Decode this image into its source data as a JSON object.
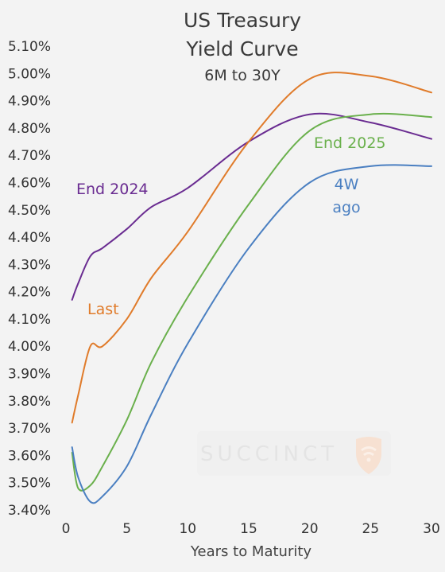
{
  "chart_data": {
    "type": "line",
    "title": "US Treasury",
    "title_line2": "Yield Curve",
    "subtitle": "6M to 30Y",
    "xlabel": "Years to Maturity",
    "ylabel": "",
    "xlim": [
      0,
      30
    ],
    "ylim": [
      3.4,
      5.1
    ],
    "x_ticks": [
      "0",
      "5",
      "10",
      "15",
      "20",
      "25",
      "30"
    ],
    "y_ticks": [
      "3.40%",
      "3.50%",
      "3.60%",
      "3.70%",
      "3.80%",
      "3.90%",
      "4.00%",
      "4.10%",
      "4.20%",
      "4.30%",
      "4.40%",
      "4.50%",
      "4.60%",
      "4.70%",
      "4.80%",
      "4.90%",
      "5.00%",
      "5.10%"
    ],
    "grid": false,
    "legend": "inline labels",
    "series": [
      {
        "name": "End 2024",
        "label_lines": [
          "End 2024"
        ],
        "color": "#6a2c91",
        "x": [
          0.5,
          1,
          2,
          3,
          5,
          7,
          10,
          15,
          20,
          25,
          30
        ],
        "y": [
          4.17,
          4.23,
          4.33,
          4.36,
          4.43,
          4.51,
          4.58,
          4.75,
          4.85,
          4.82,
          4.76
        ]
      },
      {
        "name": "Last",
        "label_lines": [
          "Last"
        ],
        "color": "#e07b2a",
        "x": [
          0.5,
          1,
          2,
          3,
          5,
          7,
          10,
          15,
          20,
          25,
          30
        ],
        "y": [
          3.72,
          3.82,
          4.0,
          4.0,
          4.1,
          4.25,
          4.42,
          4.75,
          4.98,
          4.99,
          4.93
        ]
      },
      {
        "name": "End 2025",
        "label_lines": [
          "End 2025"
        ],
        "color": "#6ab04c",
        "x": [
          0.5,
          1,
          2,
          3,
          5,
          7,
          10,
          15,
          20,
          25,
          30
        ],
        "y": [
          3.61,
          3.48,
          3.49,
          3.56,
          3.73,
          3.94,
          4.18,
          4.52,
          4.79,
          4.85,
          4.84
        ]
      },
      {
        "name": "4W ago",
        "label_lines": [
          "4W",
          "ago"
        ],
        "color": "#4a7fc1",
        "x": [
          0.5,
          1,
          2,
          3,
          5,
          7,
          10,
          15,
          20,
          25,
          30
        ],
        "y": [
          3.63,
          3.52,
          3.43,
          3.45,
          3.56,
          3.75,
          4.01,
          4.36,
          4.6,
          4.66,
          4.66
        ]
      }
    ]
  },
  "watermark": {
    "text": "SUCCINCT",
    "icon": "wifi-shield-logo-icon",
    "icon_color": "#f6e0d0"
  }
}
